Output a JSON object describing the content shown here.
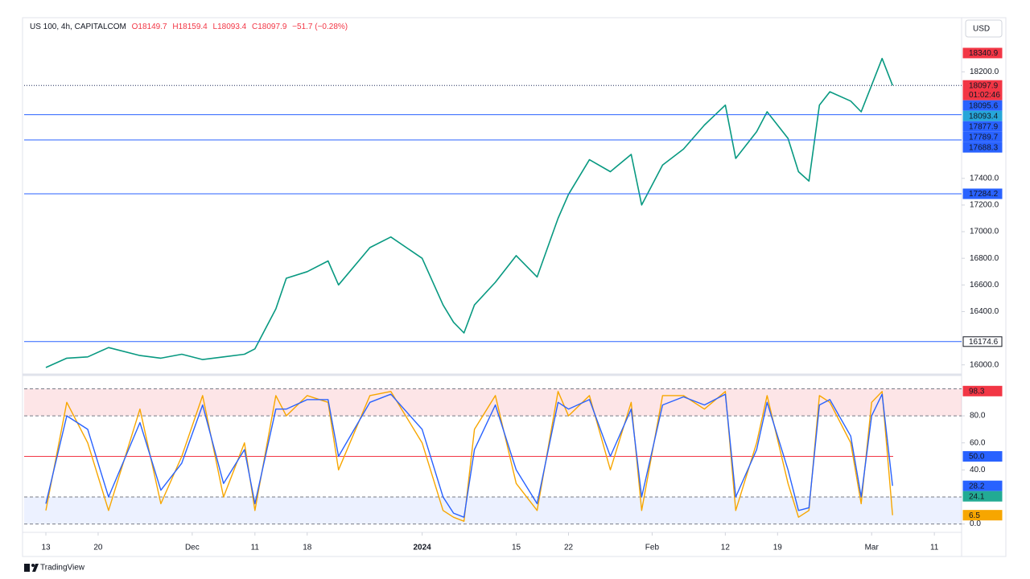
{
  "header": {
    "symbol": "US 100, 4h, CAPITALCOM",
    "ohlc": [
      "O18149.7",
      "H18159.4",
      "L18093.4",
      "C18097.9"
    ],
    "change": "−51.7 (−0.28%)"
  },
  "currency": "USD",
  "brand": "TradingView",
  "chart_data": [
    {
      "type": "line",
      "x": [
        "2023-11-13",
        "2023-11-15",
        "2023-11-17",
        "2023-11-21",
        "2023-11-24",
        "2023-11-28",
        "2023-11-30",
        "2023-12-04",
        "2023-12-06",
        "2023-12-08",
        "2023-12-11",
        "2023-12-13",
        "2023-12-14",
        "2023-12-18",
        "2023-12-20",
        "2023-12-21",
        "2023-12-26",
        "2023-12-28",
        "2024-01-02",
        "2024-01-04",
        "2024-01-05",
        "2024-01-08",
        "2024-01-09",
        "2024-01-11",
        "2024-01-15",
        "2024-01-17",
        "2024-01-19",
        "2024-01-22",
        "2024-01-24",
        "2024-01-26",
        "2024-01-30",
        "2024-01-31",
        "2024-02-02",
        "2024-02-06",
        "2024-02-08",
        "2024-02-12",
        "2024-02-13",
        "2024-02-15",
        "2024-02-16",
        "2024-02-20",
        "2024-02-21",
        "2024-02-22",
        "2024-02-23",
        "2024-02-26",
        "2024-02-28",
        "2024-02-29",
        "2024-03-01",
        "2024-03-04",
        "2024-03-05"
      ],
      "values": [
        15980,
        16050,
        16060,
        16130,
        16070,
        16050,
        16080,
        16040,
        16060,
        16080,
        16120,
        16420,
        16650,
        16700,
        16780,
        16600,
        16880,
        16960,
        16800,
        16450,
        16320,
        16240,
        16450,
        16620,
        16820,
        16660,
        17100,
        17280,
        17540,
        17450,
        17580,
        17200,
        17500,
        17620,
        17800,
        17950,
        17550,
        17750,
        17900,
        17700,
        17450,
        17380,
        17950,
        18050,
        17980,
        17900,
        18100,
        18300,
        18097.9
      ],
      "color": "#089981",
      "ylim": [
        15950,
        18570
      ],
      "yticks": [
        {
          "value": 16000,
          "label": "16000.0"
        },
        {
          "value": 16400,
          "label": "16400.0"
        },
        {
          "value": 16600,
          "label": "16600.0"
        },
        {
          "value": 16800,
          "label": "16800.0"
        },
        {
          "value": 17000,
          "label": "17000.0"
        },
        {
          "value": 17200,
          "label": "17200.0"
        },
        {
          "value": 17400,
          "label": "17400.0"
        },
        {
          "value": 18200,
          "label": "18200.0"
        }
      ],
      "xticks": [
        {
          "value": "2023-11-13",
          "label": "13"
        },
        {
          "value": "2023-11-20",
          "label": "20"
        },
        {
          "value": "2023-12-01",
          "label": "Dec"
        },
        {
          "value": "2023-12-11",
          "label": "11"
        },
        {
          "value": "2023-12-18",
          "label": "18"
        },
        {
          "value": "2024-01-02",
          "label": "2024"
        },
        {
          "value": "2024-01-15",
          "label": "15"
        },
        {
          "value": "2024-01-22",
          "label": "22"
        },
        {
          "value": "2024-02-01",
          "label": "Feb"
        },
        {
          "value": "2024-02-12",
          "label": "12"
        },
        {
          "value": "2024-02-19",
          "label": "19"
        },
        {
          "value": "2024-03-01",
          "label": "Mar"
        },
        {
          "value": "2024-03-11",
          "label": "11"
        }
      ],
      "price_labels": [
        {
          "value": 18340.9,
          "color": "#f23645"
        },
        {
          "value": 18097.9,
          "color": "#f23645",
          "line": "dotted",
          "timer": "01:02:46"
        },
        {
          "value": 18095.6,
          "color": "#2962ff"
        },
        {
          "value": 18093.4,
          "color": "#26a6d9"
        },
        {
          "value": 17877.9,
          "color": "#2962ff",
          "line": "solid"
        },
        {
          "value": 17789.7,
          "color": "#2962ff"
        },
        {
          "value": 17688.3,
          "color": "#2962ff",
          "line": "solid"
        },
        {
          "value": 17284.2,
          "color": "#2962ff",
          "line": "solid"
        },
        {
          "value": 16174.6,
          "color": "#ffffff",
          "line": "solid"
        }
      ]
    },
    {
      "type": "line",
      "x": [
        "2023-11-13",
        "2023-11-15",
        "2023-11-17",
        "2023-11-21",
        "2023-11-24",
        "2023-11-28",
        "2023-11-30",
        "2023-12-04",
        "2023-12-06",
        "2023-12-08",
        "2023-12-11",
        "2023-12-13",
        "2023-12-14",
        "2023-12-18",
        "2023-12-20",
        "2023-12-21",
        "2023-12-26",
        "2023-12-28",
        "2024-01-02",
        "2024-01-04",
        "2024-01-05",
        "2024-01-08",
        "2024-01-09",
        "2024-01-11",
        "2024-01-15",
        "2024-01-17",
        "2024-01-19",
        "2024-01-22",
        "2024-01-24",
        "2024-01-26",
        "2024-01-30",
        "2024-01-31",
        "2024-02-02",
        "2024-02-06",
        "2024-02-08",
        "2024-02-12",
        "2024-02-13",
        "2024-02-15",
        "2024-02-16",
        "2024-02-20",
        "2024-02-21",
        "2024-02-22",
        "2024-02-23",
        "2024-02-26",
        "2024-02-28",
        "2024-02-29",
        "2024-03-01",
        "2024-03-04",
        "2024-03-05"
      ],
      "series": [
        {
          "color": "#f7a600",
          "values": [
            10,
            90,
            60,
            10,
            85,
            15,
            50,
            95,
            20,
            60,
            10,
            95,
            80,
            95,
            90,
            40,
            95,
            98,
            60,
            10,
            5,
            2,
            70,
            95,
            30,
            10,
            98,
            80,
            95,
            40,
            90,
            10,
            95,
            95,
            85,
            98,
            10,
            60,
            95,
            30,
            5,
            10,
            95,
            90,
            60,
            15,
            90,
            98,
            6.5
          ]
        },
        {
          "color": "#2962ff",
          "values": [
            15,
            80,
            70,
            20,
            75,
            25,
            45,
            88,
            30,
            55,
            15,
            85,
            85,
            92,
            92,
            50,
            90,
            96,
            70,
            20,
            8,
            5,
            55,
            88,
            40,
            15,
            90,
            85,
            92,
            50,
            85,
            20,
            88,
            94,
            88,
            96,
            20,
            55,
            90,
            40,
            10,
            12,
            88,
            92,
            65,
            20,
            80,
            96,
            28.2
          ]
        }
      ],
      "ylim": [
        -5,
        108
      ],
      "yticks": [
        {
          "value": 0,
          "label": "0.0"
        },
        {
          "value": 40,
          "label": "40.0"
        },
        {
          "value": 60,
          "label": "60.0"
        },
        {
          "value": 80,
          "label": "80.0"
        }
      ],
      "overbought": [
        80,
        100
      ],
      "oversold": [
        0,
        20
      ],
      "midline": 50,
      "price_labels": [
        {
          "value": 98.3,
          "color": "#f23645"
        },
        {
          "value": 50,
          "label": "50.0",
          "color": "#2962ff"
        },
        {
          "value": 28.2,
          "color": "#2962ff"
        },
        {
          "value": 24.1,
          "color": "#22ab94"
        },
        {
          "value": 6.5,
          "color": "#f7a600"
        }
      ]
    }
  ]
}
